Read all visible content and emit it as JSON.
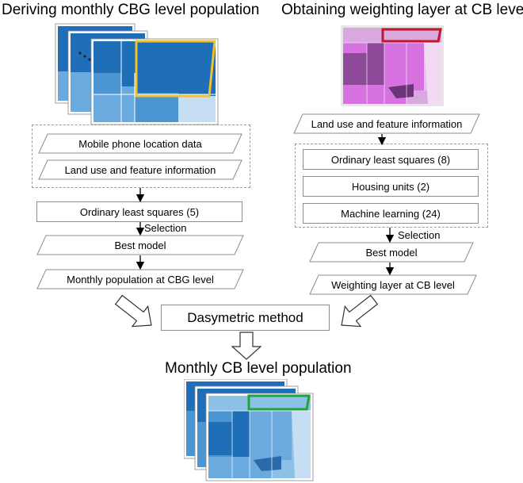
{
  "left": {
    "title": "Deriving monthly CBG level population",
    "inputs": [
      "Mobile phone location data",
      "Land use and feature information"
    ],
    "method": "Ordinary least squares (5)",
    "selection_label": "Selection",
    "best_model": "Best model",
    "output": "Monthly population at CBG level"
  },
  "right": {
    "title": "Obtaining weighting layer at CB level",
    "input": "Land use and feature information",
    "methods": [
      "Ordinary least squares (8)",
      "Housing units (2)",
      "Machine learning (24)"
    ],
    "selection_label": "Selection",
    "best_model": "Best model",
    "output": "Weighting layer at CB level"
  },
  "center": {
    "method": "Dasymetric method",
    "result_title": "Monthly CB level population"
  },
  "colors": {
    "blue_dark": "#1f6fb8",
    "blue_mid": "#4a95d2",
    "blue_light": "#8cc0e6",
    "yellow_outline": "#f2c12e",
    "red_outline": "#c0182a",
    "green_outline": "#22a33a",
    "purple_dark": "#8e4a98",
    "magenta": "#d572e0"
  }
}
